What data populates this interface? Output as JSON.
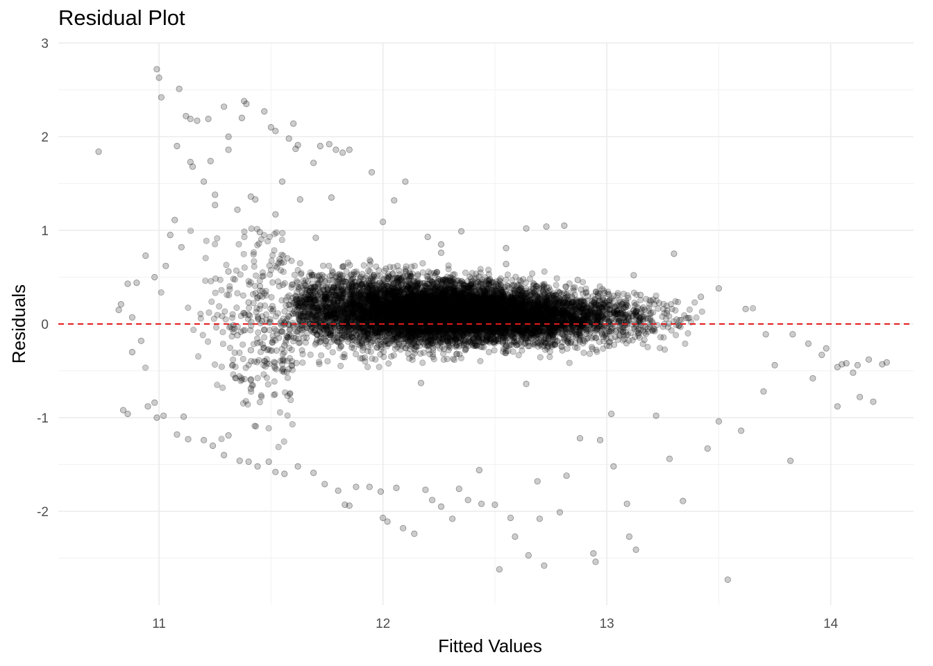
{
  "chart_data": {
    "type": "scatter",
    "title": "Residual Plot",
    "xlabel": "Fitted Values",
    "ylabel": "Residuals",
    "xlim": [
      10.55,
      14.37
    ],
    "ylim": [
      -3.0,
      3.0
    ],
    "x_ticks": [
      11,
      12,
      13,
      14
    ],
    "y_ticks": [
      -2,
      -1,
      0,
      1,
      2,
      3
    ],
    "grid": true,
    "reference_line": {
      "y": 0,
      "style": "dashed",
      "color": "#e41a1c"
    },
    "point_color": "#000000",
    "point_opacity": 0.2,
    "series": [
      {
        "points": [
          [
            10.73,
            1.84
          ],
          [
            10.99,
            2.72
          ],
          [
            11.0,
            2.63
          ],
          [
            11.01,
            2.42
          ],
          [
            11.08,
            1.9
          ],
          [
            11.09,
            2.51
          ],
          [
            11.12,
            2.22
          ],
          [
            11.14,
            2.19
          ],
          [
            11.17,
            2.17
          ],
          [
            11.14,
            1.73
          ],
          [
            11.15,
            1.68
          ],
          [
            11.22,
            2.19
          ],
          [
            11.23,
            1.74
          ],
          [
            11.29,
            2.32
          ],
          [
            11.31,
            2.0
          ],
          [
            11.31,
            1.86
          ],
          [
            11.37,
            2.2
          ],
          [
            11.38,
            2.38
          ],
          [
            11.39,
            2.35
          ],
          [
            11.41,
            1.36
          ],
          [
            11.43,
            1.33
          ],
          [
            11.47,
            2.27
          ],
          [
            11.5,
            2.1
          ],
          [
            11.52,
            2.06
          ],
          [
            11.58,
            1.98
          ],
          [
            11.6,
            2.14
          ],
          [
            11.61,
            1.87
          ],
          [
            11.62,
            1.91
          ],
          [
            11.69,
            1.72
          ],
          [
            11.72,
            1.9
          ],
          [
            11.76,
            1.92
          ],
          [
            11.79,
            1.86
          ],
          [
            11.82,
            1.83
          ],
          [
            11.85,
            1.86
          ],
          [
            11.95,
            1.62
          ],
          [
            12.05,
            1.32
          ],
          [
            12.1,
            1.52
          ],
          [
            11.55,
            1.52
          ],
          [
            11.25,
            1.27
          ],
          [
            11.2,
            1.52
          ],
          [
            11.05,
            0.95
          ],
          [
            11.07,
            1.11
          ],
          [
            11.1,
            0.82
          ],
          [
            11.03,
            0.62
          ],
          [
            10.98,
            0.5
          ],
          [
            10.94,
            0.73
          ],
          [
            10.9,
            0.44
          ],
          [
            10.86,
            0.43
          ],
          [
            10.82,
            0.15
          ],
          [
            10.83,
            0.21
          ],
          [
            10.88,
            0.07
          ],
          [
            10.92,
            -0.18
          ],
          [
            10.88,
            -0.3
          ],
          [
            10.98,
            -0.84
          ],
          [
            10.99,
            -1.0
          ],
          [
            10.95,
            -0.88
          ],
          [
            10.84,
            -0.92
          ],
          [
            10.86,
            -0.96
          ],
          [
            11.02,
            -0.98
          ],
          [
            11.11,
            -0.99
          ],
          [
            11.08,
            -1.18
          ],
          [
            11.13,
            -1.23
          ],
          [
            11.2,
            -1.24
          ],
          [
            11.24,
            -1.3
          ],
          [
            11.29,
            -1.4
          ],
          [
            11.31,
            -1.19
          ],
          [
            11.36,
            -1.46
          ],
          [
            11.4,
            -1.47
          ],
          [
            11.44,
            -1.52
          ],
          [
            11.49,
            -1.47
          ],
          [
            11.52,
            -1.58
          ],
          [
            11.56,
            -1.6
          ],
          [
            11.62,
            -1.52
          ],
          [
            11.69,
            -1.59
          ],
          [
            11.74,
            -1.71
          ],
          [
            11.8,
            -1.78
          ],
          [
            11.83,
            -1.93
          ],
          [
            11.85,
            -1.94
          ],
          [
            11.88,
            -1.74
          ],
          [
            11.94,
            -1.74
          ],
          [
            11.99,
            -1.79
          ],
          [
            12.0,
            -2.07
          ],
          [
            12.02,
            -2.11
          ],
          [
            12.06,
            -1.75
          ],
          [
            12.09,
            -2.18
          ],
          [
            12.14,
            -2.24
          ],
          [
            12.19,
            -1.77
          ],
          [
            12.22,
            -1.88
          ],
          [
            12.26,
            -1.95
          ],
          [
            12.31,
            -2.08
          ],
          [
            12.34,
            -1.76
          ],
          [
            12.38,
            -1.88
          ],
          [
            12.43,
            -1.56
          ],
          [
            12.44,
            -1.92
          ],
          [
            12.52,
            -2.62
          ],
          [
            12.5,
            -1.93
          ],
          [
            12.57,
            -2.07
          ],
          [
            12.59,
            -2.27
          ],
          [
            12.65,
            -2.47
          ],
          [
            12.69,
            -1.68
          ],
          [
            12.7,
            -2.08
          ],
          [
            12.72,
            -2.58
          ],
          [
            12.79,
            -2.01
          ],
          [
            12.82,
            -1.62
          ],
          [
            12.88,
            -1.22
          ],
          [
            12.94,
            -2.45
          ],
          [
            12.95,
            -2.54
          ],
          [
            12.97,
            -1.24
          ],
          [
            13.02,
            -0.96
          ],
          [
            13.03,
            -1.52
          ],
          [
            13.09,
            -1.92
          ],
          [
            13.1,
            -2.27
          ],
          [
            13.13,
            -2.41
          ],
          [
            13.22,
            -0.98
          ],
          [
            13.28,
            -1.44
          ],
          [
            13.34,
            -1.89
          ],
          [
            13.45,
            -1.33
          ],
          [
            13.5,
            -1.04
          ],
          [
            13.54,
            -2.73
          ],
          [
            13.6,
            -1.14
          ],
          [
            13.82,
            -1.46
          ],
          [
            14.03,
            -0.88
          ],
          [
            14.13,
            -0.78
          ],
          [
            14.19,
            -0.83
          ],
          [
            14.23,
            -0.43
          ],
          [
            14.25,
            -0.41
          ],
          [
            14.17,
            -0.38
          ],
          [
            14.05,
            -0.43
          ],
          [
            13.92,
            -0.58
          ],
          [
            13.96,
            -0.33
          ],
          [
            14.03,
            -0.46
          ],
          [
            11.31,
            0.56
          ],
          [
            11.35,
            -0.12
          ],
          [
            11.41,
            -0.28
          ],
          [
            11.41,
            -0.6
          ],
          [
            11.41,
            -0.69
          ],
          [
            11.4,
            0.23
          ],
          [
            11.4,
            0.1
          ],
          [
            11.45,
            0.3
          ],
          [
            11.46,
            0.03
          ],
          [
            11.47,
            -0.06
          ],
          [
            11.55,
            -0.08
          ],
          [
            11.56,
            -0.23
          ],
          [
            11.57,
            -0.13
          ],
          [
            12.26,
            0.85
          ],
          [
            12.26,
            0.76
          ],
          [
            12.55,
            0.64
          ],
          [
            12.64,
            -0.64
          ],
          [
            12.41,
            -0.23
          ],
          [
            12.17,
            -0.63
          ],
          [
            12.87,
            0.47
          ],
          [
            13.12,
            0.52
          ],
          [
            13.42,
            0.29
          ],
          [
            13.15,
            0.31
          ],
          [
            13.7,
            -0.72
          ],
          [
            12.73,
            1.04
          ],
          [
            12.64,
            1.02
          ],
          [
            12.81,
            1.05
          ],
          [
            12.55,
            0.81
          ],
          [
            12.35,
            0.99
          ],
          [
            11.77,
            1.35
          ],
          [
            11.63,
            1.33
          ],
          [
            11.52,
            1.17
          ],
          [
            11.35,
            1.22
          ],
          [
            11.25,
            1.38
          ],
          [
            11.45,
            0.98
          ],
          [
            11.7,
            0.92
          ],
          [
            12.0,
            1.09
          ],
          [
            12.2,
            0.93
          ],
          [
            13.3,
            0.75
          ],
          [
            13.5,
            0.38
          ],
          [
            13.62,
            0.16
          ],
          [
            13.71,
            -0.11
          ],
          [
            13.83,
            -0.11
          ],
          [
            13.9,
            -0.21
          ],
          [
            13.98,
            -0.26
          ],
          [
            14.07,
            -0.42
          ],
          [
            14.12,
            -0.44
          ],
          [
            14.1,
            -0.52
          ],
          [
            13.75,
            -0.44
          ]
        ]
      }
    ]
  }
}
